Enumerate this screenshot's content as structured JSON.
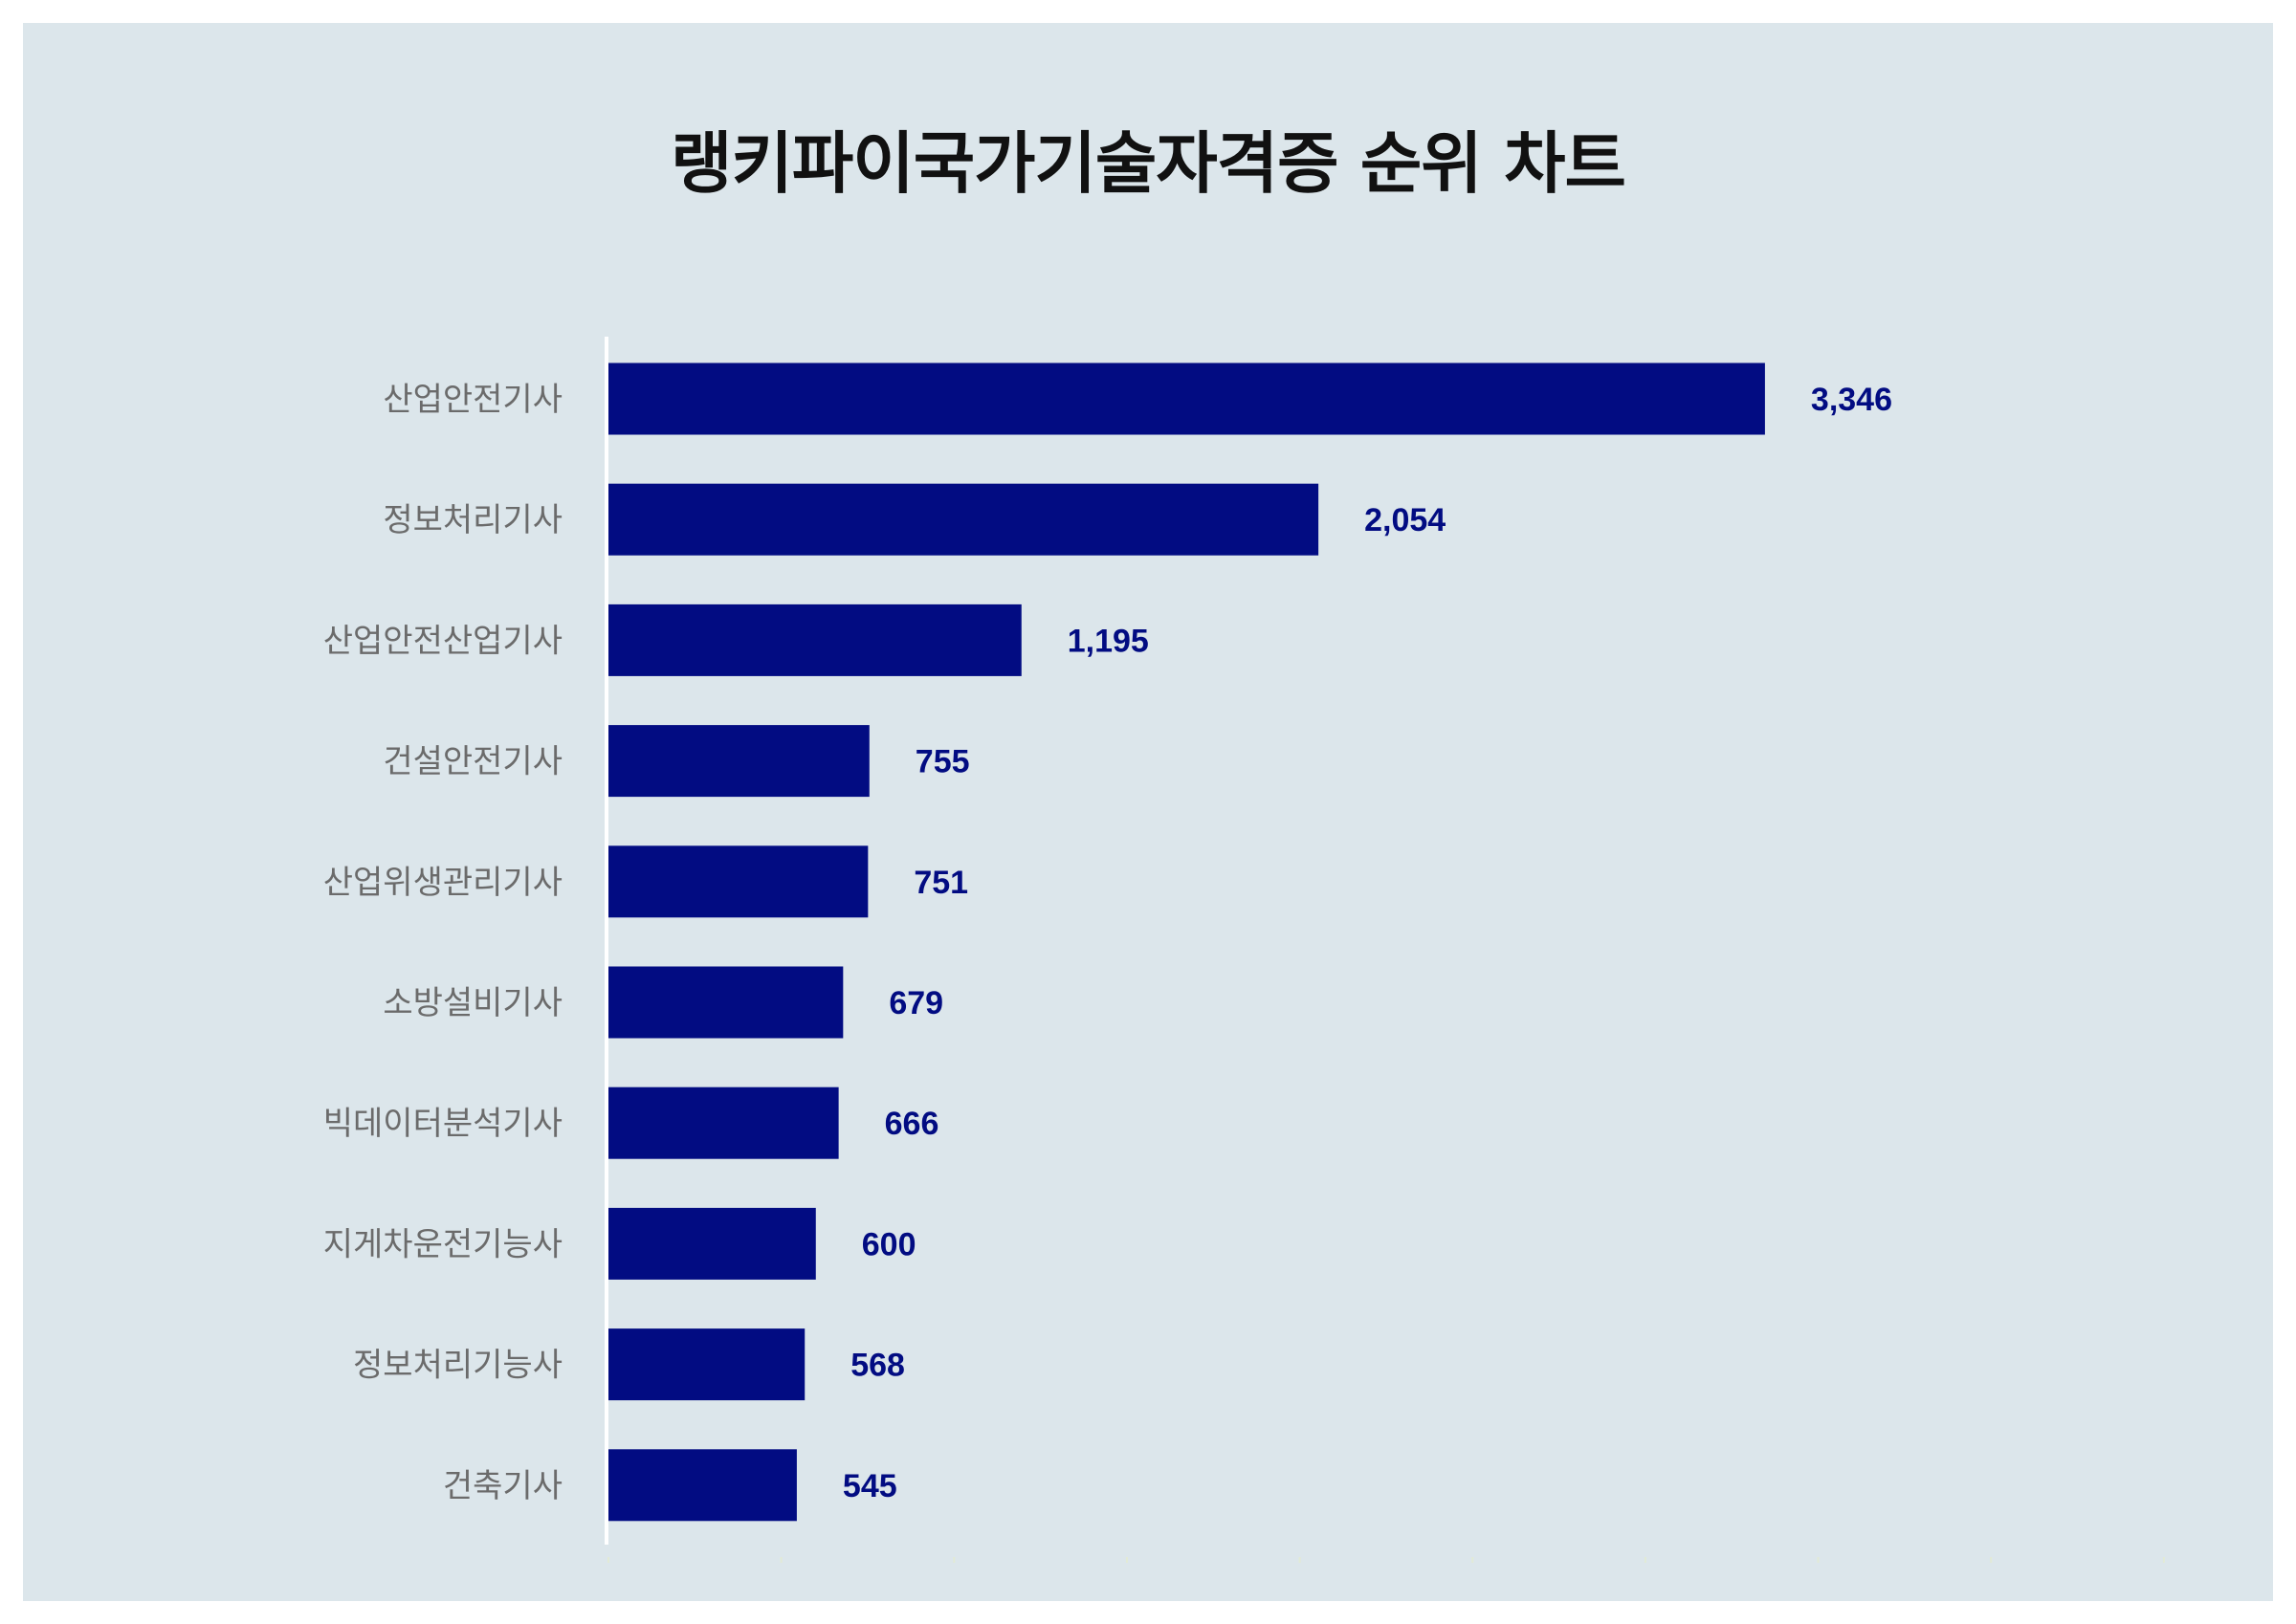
{
  "chart_data": {
    "type": "bar",
    "orientation": "horizontal",
    "title": "랭키파이국가기술자격증 순위 차트",
    "categories": [
      "산업안전기사",
      "정보처리기사",
      "산업안전산업기사",
      "건설안전기사",
      "산업위생관리기사",
      "소방설비기사",
      "빅데이터분석기사",
      "지게차운전기능사",
      "정보처리기능사",
      "건축기사"
    ],
    "values": [
      3346,
      2054,
      1195,
      755,
      751,
      679,
      666,
      600,
      568,
      545
    ],
    "value_labels": [
      "3,346",
      "2,054",
      "1,195",
      "755",
      "751",
      "679",
      "666",
      "600",
      "568",
      "545"
    ],
    "xlim": [
      0,
      5000
    ],
    "grid": false,
    "colors": {
      "bar": "#020c82",
      "value_label": "#020c82",
      "axis_line": "#ffffff",
      "background": "#dce6eb"
    }
  }
}
